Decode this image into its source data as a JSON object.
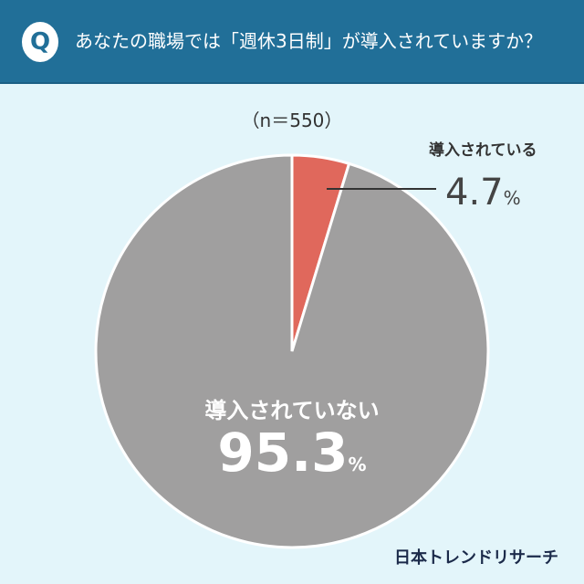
{
  "header": {
    "badge": "Q",
    "question": "あなたの職場では「週休3日制」が導入されていますか？"
  },
  "chart_data": {
    "type": "pie",
    "title": "あなたの職場では「週休3日制」が導入されていますか？",
    "n_label": "（n＝550）",
    "slices": [
      {
        "label": "導入されている",
        "value": 4.7,
        "display": "4.7",
        "unit": "%",
        "color": "#e0685c"
      },
      {
        "label": "導入されていない",
        "value": 95.3,
        "display": "95.3",
        "unit": "%",
        "color": "#a09f9f"
      }
    ]
  },
  "logo": "日本トレンドリサーチ"
}
